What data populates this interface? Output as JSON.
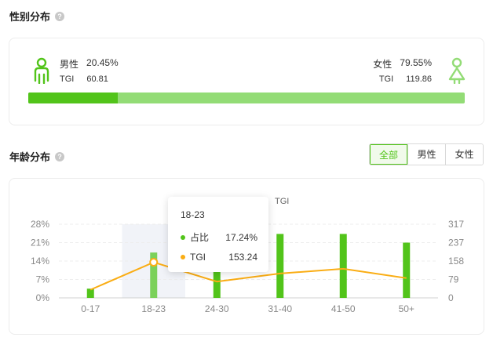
{
  "gender_section": {
    "title": "性别分布",
    "help": "?",
    "male": {
      "label": "男性",
      "percent": "20.45%",
      "tgi_label": "TGI",
      "tgi": "60.81"
    },
    "female": {
      "label": "女性",
      "percent": "79.55%",
      "tgi_label": "TGI",
      "tgi": "119.86"
    },
    "male_share": 0.2045,
    "colors": {
      "male": "#52c41a",
      "female": "#93dc76"
    }
  },
  "age_section": {
    "title": "年龄分布",
    "help": "?",
    "filters": [
      {
        "label": "全部",
        "active": true
      },
      {
        "label": "男性",
        "active": false
      },
      {
        "label": "女性",
        "active": false
      }
    ],
    "legend_tgi": "TGI",
    "tooltip": {
      "title": "18-23",
      "rows": [
        {
          "label": "占比",
          "value": "17.24%",
          "color": "#52c41a"
        },
        {
          "label": "TGI",
          "value": "153.24",
          "color": "#faad14"
        }
      ]
    }
  },
  "chart_data": {
    "type": "bar",
    "categories": [
      "0-17",
      "18-23",
      "24-30",
      "31-40",
      "41-50",
      "50+"
    ],
    "series": [
      {
        "name": "占比",
        "type": "bar",
        "axis": "left",
        "values": [
          3.5,
          17.24,
          10.5,
          24.3,
          24.3,
          21.0
        ],
        "color": "#52c41a"
      },
      {
        "name": "TGI",
        "type": "line",
        "axis": "right",
        "values": [
          35,
          153.24,
          70,
          105,
          125,
          85
        ],
        "color": "#faad14"
      }
    ],
    "y_left": {
      "ticks": [
        "0%",
        "7%",
        "14%",
        "21%",
        "28%"
      ],
      "range": [
        0,
        28
      ]
    },
    "y_right": {
      "ticks": [
        "0",
        "79",
        "158",
        "237",
        "317"
      ],
      "range": [
        0,
        317
      ]
    },
    "highlight_index": 1,
    "grid": true
  }
}
